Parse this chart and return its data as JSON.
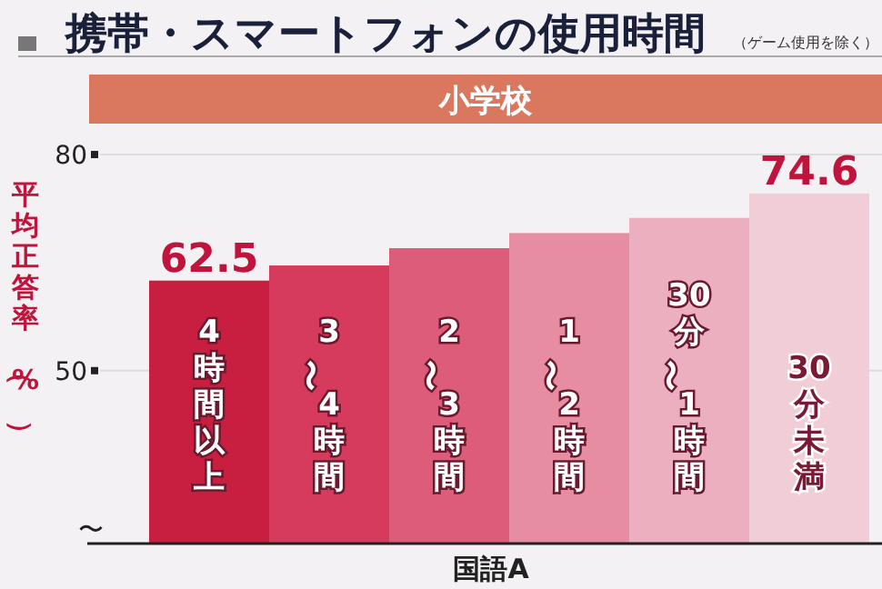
{
  "chart_data": {
    "type": "bar",
    "title": "携帯・スマートフォンの使用時間",
    "subtitle": "小学校",
    "xlabel": "国語A",
    "ylabel": "平均正答率（%）",
    "annotations": [
      "（ゲーム使用を除く）",
      "〜"
    ],
    "categories": [
      "4時間以上",
      "3〜4時間",
      "2〜3時間",
      "1〜2時間",
      "30分〜1時間",
      "30分未満"
    ],
    "values": [
      62.5,
      64.6,
      67.0,
      69.1,
      71.2,
      74.6
    ],
    "colors": [
      "#c81e40",
      "#d63a5c",
      "#dd5c7a",
      "#e68da2",
      "#ecafbf",
      "#f1cdd7"
    ],
    "value_labels": [
      "62.5",
      null,
      null,
      null,
      null,
      "74.6"
    ],
    "ylim": [
      26,
      80
    ],
    "yticks": [
      50,
      80
    ],
    "grid": "y"
  }
}
